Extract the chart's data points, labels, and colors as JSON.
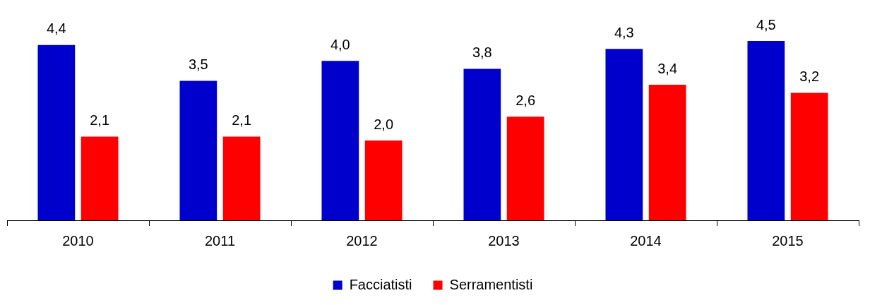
{
  "chart_data": {
    "type": "bar",
    "categories": [
      "2010",
      "2011",
      "2012",
      "2013",
      "2014",
      "2015"
    ],
    "series": [
      {
        "name": "Facciatisti",
        "color": "#0000cc",
        "values": [
          4.4,
          3.5,
          4.0,
          3.8,
          4.3,
          4.5
        ],
        "value_labels": [
          "4,4",
          "3,5",
          "4,0",
          "3,8",
          "4,3",
          "4,5"
        ]
      },
      {
        "name": "Serramentisti",
        "color": "#ff0000",
        "values": [
          2.1,
          2.1,
          2.0,
          2.6,
          3.4,
          3.2
        ],
        "value_labels": [
          "2,1",
          "2,1",
          "2,0",
          "2,6",
          "3,4",
          "3,2"
        ]
      }
    ],
    "legend": "bottom"
  }
}
